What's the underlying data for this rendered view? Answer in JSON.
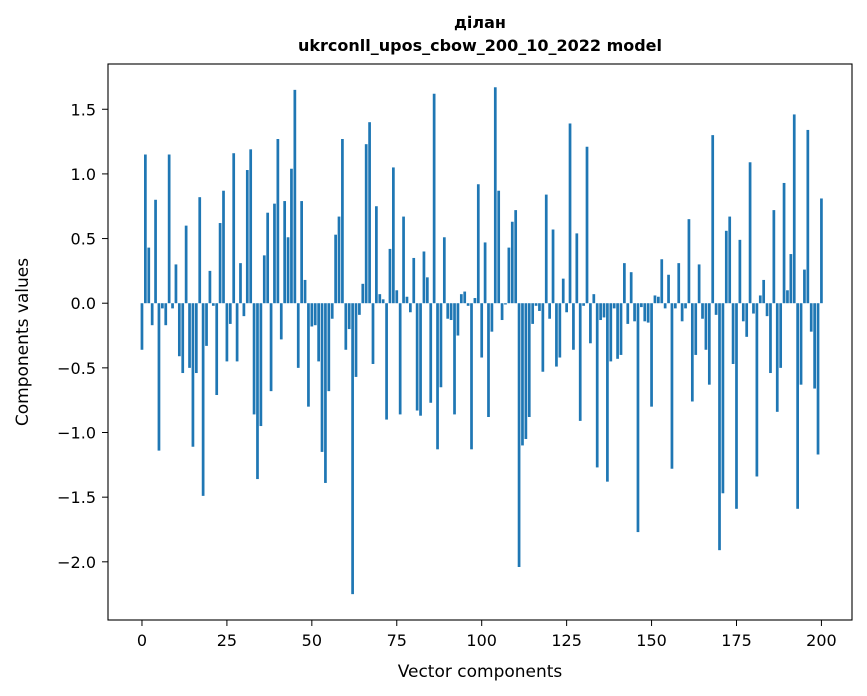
{
  "chart_data": {
    "type": "bar",
    "title": "ділан",
    "subtitle": "ukrconll_upos_cbow_200_10_2022 model",
    "xlabel": "Vector components",
    "ylabel": "Components values",
    "xlim": [
      -10,
      209
    ],
    "ylim": [
      -2.45,
      1.85
    ],
    "xticks": [
      0,
      25,
      50,
      75,
      100,
      125,
      150,
      175,
      200
    ],
    "yticks": [
      -2.0,
      -1.5,
      -1.0,
      -0.5,
      0.0,
      0.5,
      1.0,
      1.5
    ],
    "grid": false,
    "bar_color": "#1f77b4",
    "values": [
      -0.36,
      1.15,
      0.43,
      -0.17,
      0.8,
      -1.14,
      -0.04,
      -0.17,
      1.15,
      -0.04,
      0.3,
      -0.41,
      -0.54,
      0.6,
      -0.5,
      -1.11,
      -0.54,
      0.82,
      -1.49,
      -0.33,
      0.25,
      -0.02,
      -0.71,
      0.62,
      0.87,
      -0.45,
      -0.16,
      1.16,
      -0.45,
      0.31,
      -0.1,
      1.03,
      1.19,
      -0.86,
      -1.36,
      -0.95,
      0.37,
      0.7,
      -0.68,
      0.77,
      1.27,
      -0.28,
      0.79,
      0.51,
      1.04,
      1.65,
      -0.5,
      0.79,
      0.18,
      -0.8,
      -0.18,
      -0.17,
      -0.45,
      -1.15,
      -1.39,
      -0.68,
      -0.12,
      0.53,
      0.67,
      1.27,
      -0.36,
      -0.2,
      -2.25,
      -0.57,
      -0.09,
      0.15,
      1.23,
      1.4,
      -0.47,
      0.75,
      0.07,
      0.03,
      -0.9,
      0.42,
      1.05,
      0.1,
      -0.86,
      0.67,
      0.05,
      -0.07,
      0.35,
      -0.83,
      -0.87,
      0.4,
      0.2,
      -0.77,
      1.62,
      -1.13,
      -0.65,
      0.51,
      -0.12,
      -0.13,
      -0.86,
      -0.25,
      0.07,
      0.09,
      -0.02,
      -1.13,
      0.04,
      0.92,
      -0.42,
      0.47,
      -0.88,
      -0.22,
      1.67,
      0.87,
      -0.13,
      -0.01,
      0.43,
      0.63,
      0.72,
      -2.04,
      -1.1,
      -1.05,
      -0.88,
      -0.16,
      -0.02,
      -0.06,
      -0.53,
      0.84,
      -0.12,
      0.57,
      -0.49,
      -0.42,
      0.19,
      -0.07,
      1.39,
      -0.36,
      0.54,
      -0.91,
      -0.02,
      1.21,
      -0.31,
      0.07,
      -1.27,
      -0.13,
      -0.11,
      -1.38,
      -0.45,
      -0.04,
      -0.43,
      -0.4,
      0.31,
      -0.16,
      0.24,
      -0.14,
      -1.77,
      -0.03,
      -0.14,
      -0.15,
      -0.8,
      0.06,
      0.05,
      0.34,
      -0.04,
      0.22,
      -1.28,
      -0.04,
      0.31,
      -0.14,
      -0.04,
      0.65,
      -0.76,
      -0.4,
      0.3,
      -0.12,
      -0.36,
      -0.63,
      1.3,
      -0.09,
      -1.91,
      -1.47,
      0.56,
      0.67,
      -0.47,
      -1.59,
      0.49,
      -0.14,
      -0.26,
      1.09,
      -0.08,
      -1.34,
      0.06,
      0.18,
      -0.1,
      -0.54,
      0.72,
      -0.84,
      -0.5,
      0.93,
      0.1,
      0.38,
      1.46,
      -1.59,
      -0.63,
      0.26,
      1.34,
      -0.22,
      -0.66,
      -1.17,
      0.81
    ]
  }
}
